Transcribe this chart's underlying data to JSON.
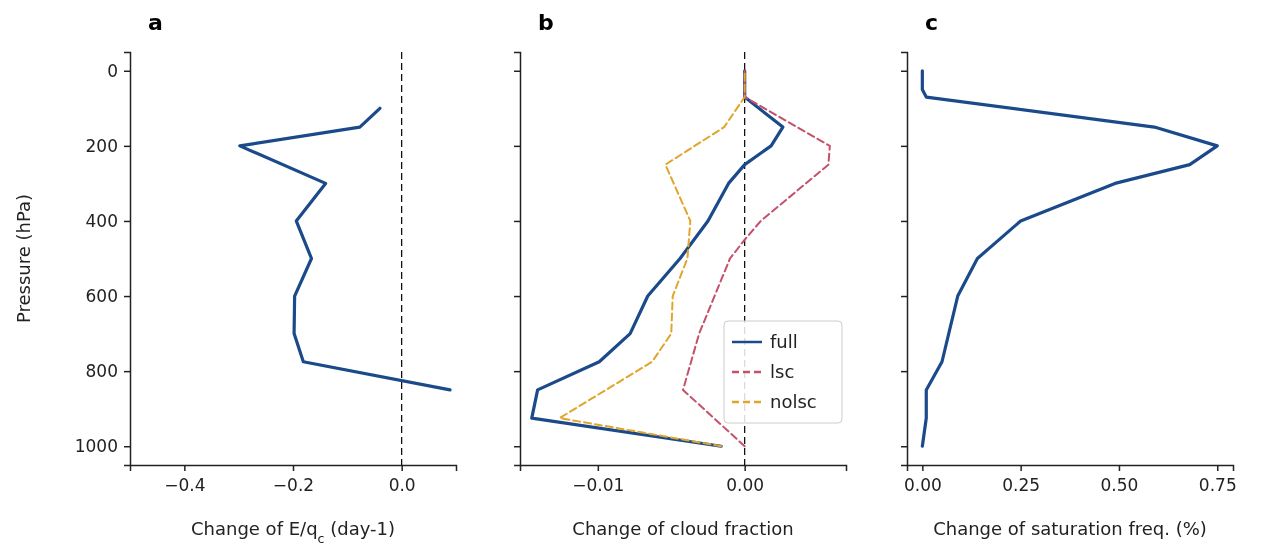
{
  "chart_data": [
    {
      "type": "line",
      "title": "a",
      "xlabel": "Change of E/q$_{c}$ (day-1)",
      "ylabel": "Pressure (hPa)",
      "xlim": [
        -0.5,
        0.1
      ],
      "xticks": [
        {
          "value": -0.4,
          "label": "−0.4"
        },
        {
          "value": -0.2,
          "label": "−0.2"
        },
        {
          "value": 0,
          "label": "0.0"
        }
      ],
      "ylim": [
        1050,
        -50
      ],
      "yticks": [
        0,
        200,
        400,
        600,
        800,
        1000
      ],
      "grid": false,
      "legend": false,
      "line_style": "solid",
      "marker": "none",
      "ref_lines": [
        {
          "axis": "x",
          "value": 0,
          "color": "#000000",
          "line_style": "dashed"
        }
      ],
      "series": [
        {
          "color": "#1a4a8a",
          "x": [
            -0.04,
            -0.077,
            -0.298,
            -0.14,
            -0.194,
            -0.166,
            -0.197,
            -0.198,
            -0.181,
            0.089
          ],
          "values": [
            100,
            150,
            200,
            300,
            400,
            500,
            600,
            700,
            775,
            850
          ]
        }
      ]
    },
    {
      "type": "line",
      "title": "b",
      "xlabel": "Change of cloud fraction",
      "xlim": [
        -0.0153,
        0.0069
      ],
      "xticks": [
        {
          "value": -0.01,
          "label": "−0.01"
        },
        {
          "value": 0,
          "label": "0.00"
        }
      ],
      "ylim": [
        1050,
        -50
      ],
      "yticks": [
        0,
        200,
        400,
        600,
        800,
        1000
      ],
      "tick_labels": "x",
      "grid": false,
      "legend": "bottom right",
      "marker": "none",
      "ref_lines": [
        {
          "axis": "x",
          "value": 0,
          "color": "#000000",
          "line_style": "dashed"
        }
      ],
      "series": [
        {
          "name": "full",
          "color": "#1a4a8a",
          "line_style": "solid",
          "x": [
            0,
            0,
            0.0026,
            0.0018,
            0,
            -0.0011,
            -0.0025,
            -0.0044,
            -0.0066,
            -0.0078,
            -0.0099,
            -0.0141,
            -0.0145,
            -0.0016
          ],
          "values": [
            0,
            70,
            150,
            200,
            250,
            300,
            400,
            500,
            600,
            700,
            775,
            850,
            925,
            1000
          ]
        },
        {
          "name": "lsc",
          "color": "#c4506a",
          "line_style": "dashed",
          "x": [
            0,
            0,
            0.0058,
            0.0057,
            0.0011,
            0,
            -0.001,
            -0.0031,
            -0.0042,
            0
          ],
          "values": [
            0,
            70,
            200,
            250,
            400,
            450,
            500,
            700,
            850,
            1000
          ]
        },
        {
          "name": "nolsc",
          "color": "#e0a52a",
          "line_style": "dashed",
          "x": [
            0,
            0,
            -0.0014,
            -0.0054,
            -0.0037,
            -0.0039,
            -0.0049,
            -0.005,
            -0.0063,
            -0.0126,
            -0.0016
          ],
          "values": [
            0,
            70,
            150,
            250,
            400,
            500,
            600,
            700,
            775,
            925,
            1000
          ]
        }
      ]
    },
    {
      "type": "line",
      "title": "c",
      "xlabel": "Change of saturation freq. (%)",
      "xlim": [
        -0.039,
        0.79
      ],
      "xticks": [
        {
          "value": 0,
          "label": "0.00"
        },
        0.25,
        {
          "value": 0.5,
          "label": "0.50"
        },
        0.75
      ],
      "ylim": [
        1050,
        -50
      ],
      "yticks": [
        0,
        200,
        400,
        600,
        800,
        1000
      ],
      "tick_labels": "x",
      "grid": false,
      "legend": false,
      "line_style": "solid",
      "marker": "none",
      "series": [
        {
          "color": "#1a4a8a",
          "x": [
            0,
            0,
            0.01,
            0.59,
            0.75,
            0.68,
            0.49,
            0.25,
            0.14,
            0.09,
            0.05,
            0.01,
            0.01,
            0
          ],
          "values": [
            0,
            50,
            70,
            150,
            200,
            250,
            300,
            400,
            500,
            600,
            775,
            850,
            925,
            1000
          ]
        }
      ]
    }
  ]
}
